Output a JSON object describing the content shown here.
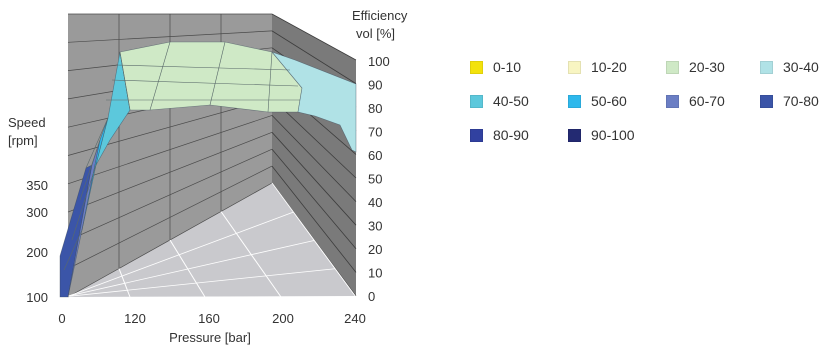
{
  "chart_data": {
    "type": "surface3d",
    "x_axis": {
      "label": "Pressure [bar]",
      "ticks": [
        "0",
        "120",
        "160",
        "200",
        "240"
      ],
      "range": [
        0,
        240
      ]
    },
    "y_axis": {
      "label_line1": "Speed",
      "label_line2": "[rpm]",
      "ticks": [
        "100",
        "200",
        "300",
        "350"
      ],
      "range": [
        100,
        350
      ]
    },
    "z_axis": {
      "label_line1": "Efficiency",
      "label_line2": "vol [%]",
      "ticks": [
        "0",
        "10",
        "20",
        "30",
        "40",
        "50",
        "60",
        "70",
        "80",
        "90",
        "100"
      ],
      "range": [
        0,
        100
      ]
    },
    "legend": [
      {
        "label": "0-10",
        "color": "#f3e20c"
      },
      {
        "label": "10-20",
        "color": "#f8f5c2"
      },
      {
        "label": "20-30",
        "color": "#cfe9c6"
      },
      {
        "label": "30-40",
        "color": "#b0e2e6"
      },
      {
        "label": "40-50",
        "color": "#5cc8dc"
      },
      {
        "label": "50-60",
        "color": "#2eb8ec"
      },
      {
        "label": "60-70",
        "color": "#6b7ec4"
      },
      {
        "label": "70-80",
        "color": "#3b55a8"
      },
      {
        "label": "80-90",
        "color": "#3141a0"
      },
      {
        "label": "90-100",
        "color": "#232a72"
      }
    ],
    "surface_colors": {
      "front_edge": "#3b55a8",
      "front_low": "#6b7ec4",
      "rise": "#2eb8ec",
      "rise_light": "#5cc8dc",
      "plateau": "#cfe9c6",
      "right_fall": "#b0e2e6"
    },
    "wall_colors": {
      "back_wall": "#9a9a9a",
      "right_wall": "#7a7a7a",
      "floor": "#c9c9cd",
      "grid": "#4a4a4a"
    }
  }
}
